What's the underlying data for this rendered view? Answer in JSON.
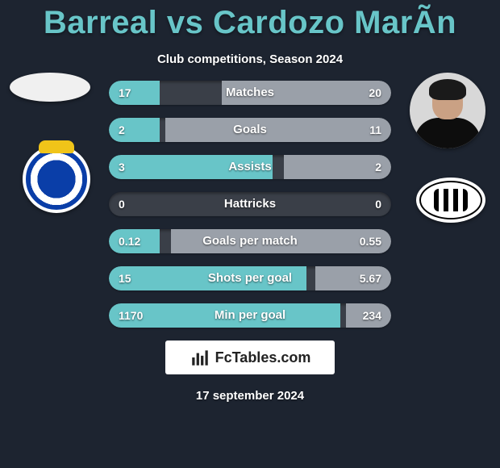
{
  "title": "Barreal vs Cardozo MarÃ­n",
  "subtitle": "Club competitions, Season 2024",
  "date": "17 september 2024",
  "branding_text": "FcTables.com",
  "colors": {
    "background": "#1d2430",
    "accent": "#68c5c8",
    "bar_bg": "#3a3f48",
    "seg_left": "#68c5c8",
    "seg_right": "#9aa0a9",
    "text": "#ffffff"
  },
  "stats": [
    {
      "label": "Matches",
      "left_text": "17",
      "right_text": "20",
      "left_pct": 18,
      "right_pct": 60
    },
    {
      "label": "Goals",
      "left_text": "2",
      "right_text": "11",
      "left_pct": 18,
      "right_pct": 80
    },
    {
      "label": "Assists",
      "left_text": "3",
      "right_text": "2",
      "left_pct": 58,
      "right_pct": 38
    },
    {
      "label": "Hattricks",
      "left_text": "0",
      "right_text": "0",
      "left_pct": 0,
      "right_pct": 0
    },
    {
      "label": "Goals per match",
      "left_text": "0.12",
      "right_text": "0.55",
      "left_pct": 18,
      "right_pct": 78
    },
    {
      "label": "Shots per goal",
      "left_text": "15",
      "right_text": "5.67",
      "left_pct": 70,
      "right_pct": 27
    },
    {
      "label": "Min per goal",
      "left_text": "1170",
      "right_text": "234",
      "left_pct": 82,
      "right_pct": 16
    }
  ]
}
